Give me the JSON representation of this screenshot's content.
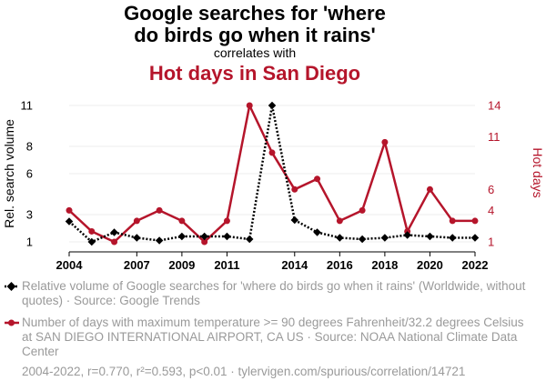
{
  "chart_data": {
    "type": "line",
    "title_line1": "Google searches for 'where",
    "title_line2": "do birds go when it rains'",
    "subtitle": "correlates with",
    "title2": "Hot days in San Diego",
    "x": [
      2004,
      2005,
      2006,
      2007,
      2008,
      2009,
      2010,
      2011,
      2012,
      2013,
      2014,
      2015,
      2016,
      2017,
      2018,
      2019,
      2020,
      2021,
      2022
    ],
    "x_ticks": [
      "2004",
      "2007",
      "2009",
      "2011",
      "2014",
      "2016",
      "2018",
      "2020",
      "2022"
    ],
    "xlim": [
      2004,
      2022
    ],
    "series": [
      {
        "name": "Relative volume of Google searches for 'where do birds go when it rains' (Worldwide, without quotes) · Source: Google Trends",
        "axis": "left",
        "color": "#000000",
        "values": [
          2.5,
          1.0,
          1.7,
          1.3,
          1.1,
          1.4,
          1.4,
          1.4,
          1.2,
          11.0,
          2.6,
          1.7,
          1.3,
          1.2,
          1.3,
          1.5,
          1.4,
          1.3,
          1.3
        ]
      },
      {
        "name": "Number of days with maximum temperature >= 90 degrees Fahrenheit/32.2 degrees Celsius at SAN DIEGO INTERNATIONAL AIRPORT, CA US · Source: NOAA National Climate Data Center",
        "axis": "right",
        "color": "#b5152b",
        "values": [
          4,
          2,
          1,
          3,
          4,
          3,
          1,
          3,
          14,
          9.5,
          6,
          7,
          3,
          4,
          10.5,
          2,
          6,
          3,
          3
        ]
      }
    ],
    "ylabel_left": "Rel. search volume",
    "ylabel_right": "Hot days",
    "y_left_ticks": [
      1,
      3,
      6,
      8,
      11
    ],
    "y_left_lim": [
      1,
      11
    ],
    "y_right_ticks": [
      1,
      4,
      6,
      11,
      14
    ],
    "y_right_lim": [
      1,
      14
    ],
    "footer": "2004-2022, r=0.770, r²=0.593, p<0.01 · tylervigen.com/spurious/correlation/14721"
  }
}
